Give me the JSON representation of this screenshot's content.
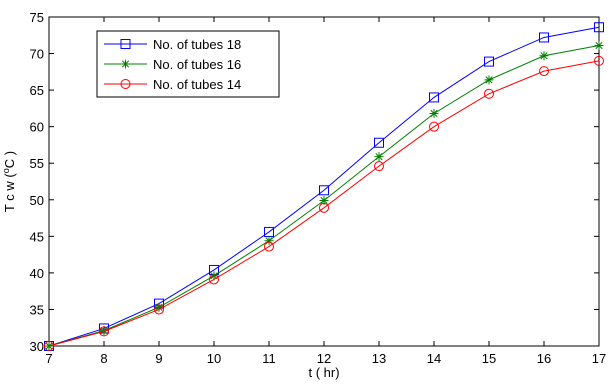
{
  "chart_data": {
    "type": "line",
    "title": "",
    "xlabel": "t ( hr)",
    "ylabel": "T c w ( o C )",
    "ylabel_parts": {
      "before": "T c w (",
      "superscript": "o",
      "after": "C )"
    },
    "xlim": [
      7,
      17
    ],
    "ylim": [
      30,
      75
    ],
    "x_ticks": [
      "7",
      "8",
      "9",
      "10",
      "11",
      "12",
      "13",
      "14",
      "15",
      "16",
      "17"
    ],
    "y_ticks": [
      "30",
      "35",
      "40",
      "45",
      "50",
      "55",
      "60",
      "65",
      "70",
      "75"
    ],
    "x": [
      7,
      8,
      9,
      10,
      11,
      12,
      13,
      14,
      15,
      16,
      17
    ],
    "grid": false,
    "legend_position": "top-left",
    "series": [
      {
        "name": "No. of tubes 18",
        "color": "#0000ff",
        "marker": "square",
        "values": [
          30,
          32.4,
          35.8,
          40.4,
          45.6,
          51.3,
          57.8,
          64.0,
          68.9,
          72.2,
          73.6
        ]
      },
      {
        "name": "No. of tubes 16",
        "color": "#008000",
        "marker": "asterisk",
        "values": [
          30,
          32.1,
          35.3,
          39.6,
          44.4,
          49.9,
          55.9,
          61.8,
          66.4,
          69.7,
          71.1
        ]
      },
      {
        "name": "No. of tubes 14",
        "color": "#ff0000",
        "marker": "circle",
        "values": [
          30,
          32.0,
          35.0,
          39.1,
          43.6,
          48.9,
          54.6,
          60.0,
          64.5,
          67.6,
          69.0
        ]
      }
    ]
  }
}
